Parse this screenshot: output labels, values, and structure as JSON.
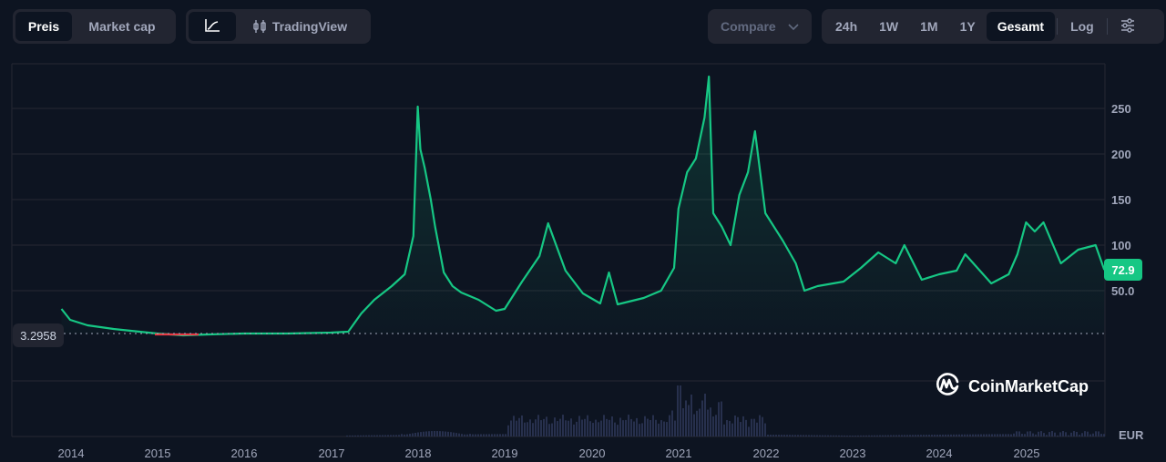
{
  "toolbar": {
    "type_tabs": [
      {
        "label": "Preis",
        "active": true
      },
      {
        "label": "Market cap",
        "active": false
      }
    ],
    "view_tabs": [
      {
        "label": "",
        "icon": "line-chart-icon",
        "active": true
      },
      {
        "label": "TradingView",
        "icon": "candlestick-icon",
        "active": false
      }
    ],
    "compare_label": "Compare",
    "ranges": [
      {
        "label": "24h",
        "active": false
      },
      {
        "label": "1W",
        "active": false
      },
      {
        "label": "1M",
        "active": false
      },
      {
        "label": "1Y",
        "active": false
      },
      {
        "label": "Gesamt",
        "active": true
      }
    ],
    "log_label": "Log",
    "settings_icon": "sliders-icon"
  },
  "chart": {
    "current_price": "72.9",
    "baseline_price": "3.2958",
    "currency": "EUR",
    "watermark": "CoinMarketCap",
    "colors": {
      "up": "#16c784",
      "down": "#ea3943",
      "volume": "#27304d",
      "grid": "#222531",
      "background": "#0d1421"
    }
  },
  "chart_data": {
    "type": "line",
    "title": "",
    "xlabel": "",
    "ylabel": "EUR",
    "x_ticks": [
      "2014",
      "2015",
      "2016",
      "2017",
      "2018",
      "2019",
      "2020",
      "2021",
      "2022",
      "2023",
      "2024",
      "2025"
    ],
    "y_ticks": [
      "50.0",
      "100",
      "150",
      "200",
      "250"
    ],
    "ylim": [
      0,
      300
    ],
    "baseline": 3.2958,
    "last_value": 72.9,
    "grid": true,
    "legend": "none",
    "series": [
      {
        "name": "Preis",
        "x": [
          2013.9,
          2014.0,
          2014.2,
          2014.5,
          2014.8,
          2015.0,
          2015.3,
          2015.6,
          2016.0,
          2016.5,
          2017.0,
          2017.2,
          2017.35,
          2017.5,
          2017.7,
          2017.85,
          2017.95,
          2018.0,
          2018.03,
          2018.08,
          2018.15,
          2018.2,
          2018.3,
          2018.4,
          2018.5,
          2018.7,
          2018.9,
          2019.0,
          2019.2,
          2019.4,
          2019.5,
          2019.7,
          2019.9,
          2020.1,
          2020.2,
          2020.3,
          2020.6,
          2020.8,
          2020.95,
          2021.0,
          2021.1,
          2021.2,
          2021.3,
          2021.35,
          2021.4,
          2021.5,
          2021.6,
          2021.7,
          2021.8,
          2021.88,
          2022.0,
          2022.2,
          2022.35,
          2022.45,
          2022.6,
          2022.9,
          2023.1,
          2023.3,
          2023.5,
          2023.6,
          2023.8,
          2024.0,
          2024.2,
          2024.3,
          2024.6,
          2024.8,
          2024.9,
          2025.0,
          2025.1,
          2025.2,
          2025.4,
          2025.6,
          2025.8,
          2025.9
        ],
        "values": [
          30,
          18,
          12,
          8,
          5,
          3,
          1,
          2,
          3,
          3,
          4,
          5,
          25,
          40,
          55,
          68,
          110,
          252,
          205,
          185,
          150,
          120,
          70,
          55,
          48,
          40,
          28,
          30,
          60,
          88,
          124,
          72,
          47,
          36,
          70,
          35,
          42,
          50,
          75,
          140,
          180,
          195,
          240,
          285,
          135,
          120,
          100,
          155,
          180,
          225,
          135,
          105,
          80,
          50,
          55,
          60,
          75,
          92,
          80,
          100,
          62,
          68,
          72,
          90,
          58,
          68,
          90,
          125,
          115,
          125,
          80,
          95,
          100,
          72.9
        ]
      }
    ],
    "volume": {
      "note": "relative bars, peaks around 2021",
      "peak_year": 2021.0
    }
  }
}
